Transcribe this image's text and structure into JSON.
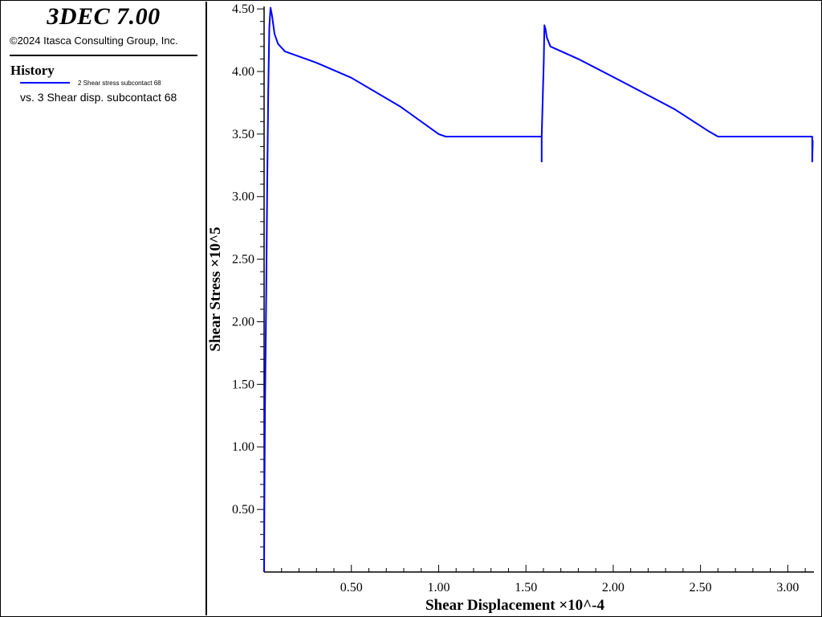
{
  "app": {
    "title": "3DEC 7.00",
    "copyright": "©2024 Itasca Consulting Group, Inc."
  },
  "legend": {
    "heading": "History",
    "series_label": "2 Shear stress subcontact 68",
    "vs_label": "vs. 3 Shear disp. subcontact 68",
    "line_color": "#0000ff"
  },
  "chart_data": {
    "type": "line",
    "xlabel": "Shear Displacement ×10^-4",
    "ylabel": "Shear Stress ×10^5",
    "xlim": [
      0,
      3.15
    ],
    "ylim": [
      0,
      4.52
    ],
    "x_ticks": [
      0.5,
      1.0,
      1.5,
      2.0,
      2.5,
      3.0
    ],
    "x_tick_labels": [
      "0.50",
      "1.00",
      "1.50",
      "2.00",
      "2.50",
      "3.00"
    ],
    "y_ticks": [
      0.5,
      1.0,
      1.5,
      2.0,
      2.5,
      3.0,
      3.5,
      4.0,
      4.5
    ],
    "y_tick_labels": [
      "0.50",
      "1.00",
      "1.50",
      "2.00",
      "2.50",
      "3.00",
      "3.50",
      "4.00",
      "4.50"
    ],
    "grid": false,
    "series": [
      {
        "name": "2 Shear stress subcontact 68",
        "color": "#0000ff",
        "points": [
          [
            0.0,
            0.0
          ],
          [
            0.002,
            0.6
          ],
          [
            0.005,
            1.3
          ],
          [
            0.012,
            2.2
          ],
          [
            0.018,
            3.1
          ],
          [
            0.024,
            3.85
          ],
          [
            0.03,
            4.35
          ],
          [
            0.037,
            4.51
          ],
          [
            0.045,
            4.45
          ],
          [
            0.06,
            4.3
          ],
          [
            0.08,
            4.22
          ],
          [
            0.12,
            4.16
          ],
          [
            0.3,
            4.07
          ],
          [
            0.5,
            3.95
          ],
          [
            0.78,
            3.72
          ],
          [
            1.0,
            3.5
          ],
          [
            1.04,
            3.48
          ],
          [
            1.59,
            3.48
          ],
          [
            1.59,
            3.28
          ],
          [
            1.59,
            3.48
          ],
          [
            1.602,
            4.08
          ],
          [
            1.606,
            4.37
          ],
          [
            1.612,
            4.34
          ],
          [
            1.62,
            4.27
          ],
          [
            1.64,
            4.2
          ],
          [
            1.8,
            4.1
          ],
          [
            2.05,
            3.92
          ],
          [
            2.35,
            3.7
          ],
          [
            2.55,
            3.52
          ],
          [
            2.6,
            3.48
          ],
          [
            3.14,
            3.48
          ],
          [
            3.14,
            3.28
          ],
          [
            3.143,
            3.45
          ]
        ]
      }
    ]
  }
}
